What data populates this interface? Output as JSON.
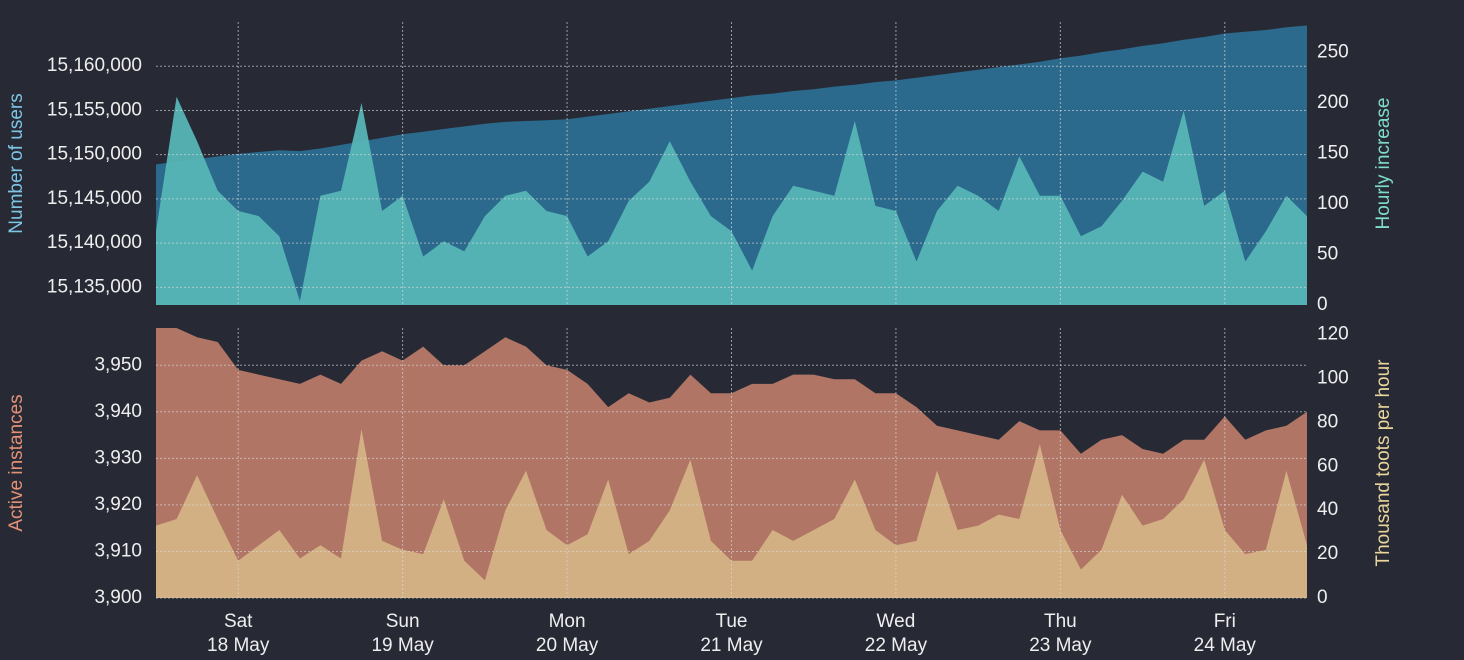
{
  "chart_data": [
    {
      "type": "area",
      "ylabel": "Number of users",
      "y2label": "Hourly increase",
      "ylim": [
        15133000,
        15165000
      ],
      "yticks": [
        {
          "value": 15135000,
          "label": "15,135,000"
        },
        {
          "value": 15140000,
          "label": "15,140,000"
        },
        {
          "value": 15145000,
          "label": "15,145,000"
        },
        {
          "value": 15150000,
          "label": "15,150,000"
        },
        {
          "value": 15155000,
          "label": "15,155,000"
        },
        {
          "value": 15160000,
          "label": "15,160,000"
        }
      ],
      "y2lim": [
        0,
        280
      ],
      "y2ticks": [
        0,
        50,
        100,
        150,
        200,
        250
      ],
      "ylabel_color": "#7fc4e4",
      "y2label_color": "#7fdcc8",
      "grid": true,
      "series": [
        {
          "color": "#2b6a8c",
          "opacity": 1,
          "axis": "y",
          "values": [
            15148900,
            15149200,
            15149500,
            15149800,
            15150100,
            15150300,
            15150500,
            15150400,
            15150700,
            15151100,
            15151500,
            15151900,
            15152300,
            15152600,
            15152900,
            15153200,
            15153500,
            15153700,
            15153800,
            15153900,
            15154000,
            15154300,
            15154600,
            15154900,
            15155200,
            15155500,
            15155800,
            15156100,
            15156400,
            15156700,
            15156900,
            15157200,
            15157400,
            15157700,
            15157900,
            15158200,
            15158400,
            15158700,
            15159000,
            15159300,
            15159600,
            15159900,
            15160200,
            15160500,
            15160900,
            15161200,
            15161600,
            15161900,
            15162300,
            15162600,
            15163000,
            15163300,
            15163700,
            15163900,
            15164100,
            15164400,
            15164600
          ]
        },
        {
          "color": "#58b8b8",
          "opacity": 0.92,
          "axis": "y2",
          "values": [
            73,
            206,
            162,
            113,
            93,
            88,
            68,
            4,
            108,
            113,
            200,
            93,
            108,
            48,
            63,
            53,
            88,
            108,
            113,
            93,
            88,
            48,
            63,
            103,
            122,
            162,
            122,
            88,
            73,
            34,
            88,
            118,
            113,
            108,
            182,
            98,
            93,
            43,
            93,
            118,
            108,
            93,
            147,
            108,
            108,
            68,
            78,
            103,
            132,
            122,
            192,
            98,
            113,
            43,
            73,
            108,
            88
          ]
        }
      ]
    },
    {
      "type": "area",
      "ylabel": "Active instances",
      "y2label": "Thousand toots per hour",
      "ylim": [
        3900,
        3958
      ],
      "yticks": [
        {
          "value": 3900,
          "label": "3,900"
        },
        {
          "value": 3910,
          "label": "3,910"
        },
        {
          "value": 3920,
          "label": "3,920"
        },
        {
          "value": 3930,
          "label": "3,930"
        },
        {
          "value": 3940,
          "label": "3,940"
        },
        {
          "value": 3950,
          "label": "3,950"
        }
      ],
      "y2lim": [
        0,
        123
      ],
      "y2ticks": [
        0,
        20,
        40,
        60,
        80,
        100,
        120
      ],
      "ylabel_color": "#e39178",
      "y2label_color": "#e9d69c",
      "grid": true,
      "categories": [
        null,
        null,
        null,
        null,
        [
          "Sat",
          "18 May"
        ],
        null,
        null,
        null,
        null,
        null,
        null,
        null,
        [
          "Sun",
          "19 May"
        ],
        null,
        null,
        null,
        null,
        null,
        null,
        null,
        [
          "Mon",
          "20 May"
        ],
        null,
        null,
        null,
        null,
        null,
        null,
        null,
        [
          "Tue",
          "21 May"
        ],
        null,
        null,
        null,
        null,
        null,
        null,
        null,
        [
          "Wed",
          "22 May"
        ],
        null,
        null,
        null,
        null,
        null,
        null,
        null,
        [
          "Thu",
          "23 May"
        ],
        null,
        null,
        null,
        null,
        null,
        null,
        null,
        [
          "Fri",
          "24 May"
        ],
        null,
        null,
        null,
        null
      ],
      "series": [
        {
          "color": "#b07565",
          "opacity": 1,
          "axis": "y",
          "values": [
            3958,
            3958,
            3956,
            3955,
            3949,
            3948,
            3947,
            3946,
            3948,
            3946,
            3951,
            3953,
            3951,
            3954,
            3950,
            3950,
            3953,
            3956,
            3954,
            3950,
            3949,
            3946,
            3941,
            3944,
            3942,
            3943,
            3948,
            3944,
            3944,
            3946,
            3946,
            3948,
            3948,
            3947,
            3947,
            3944,
            3944,
            3941,
            3937,
            3936,
            3935,
            3934,
            3938,
            3936,
            3936,
            3931,
            3934,
            3935,
            3932,
            3931,
            3934,
            3934,
            3939,
            3934,
            3936,
            3937,
            3940
          ]
        },
        {
          "color": "#d6b585",
          "opacity": 0.92,
          "axis": "y2",
          "values": [
            33,
            36,
            56,
            36,
            17,
            24,
            31,
            18,
            24,
            18,
            77,
            26,
            22,
            20,
            45,
            17,
            8,
            40,
            58,
            31,
            24,
            29,
            54,
            20,
            26,
            40,
            63,
            26,
            17,
            17,
            31,
            26,
            31,
            36,
            54,
            31,
            24,
            26,
            58,
            31,
            33,
            38,
            36,
            70,
            31,
            13,
            22,
            47,
            33,
            36,
            45,
            63,
            31,
            20,
            22,
            58,
            24
          ]
        }
      ]
    }
  ]
}
